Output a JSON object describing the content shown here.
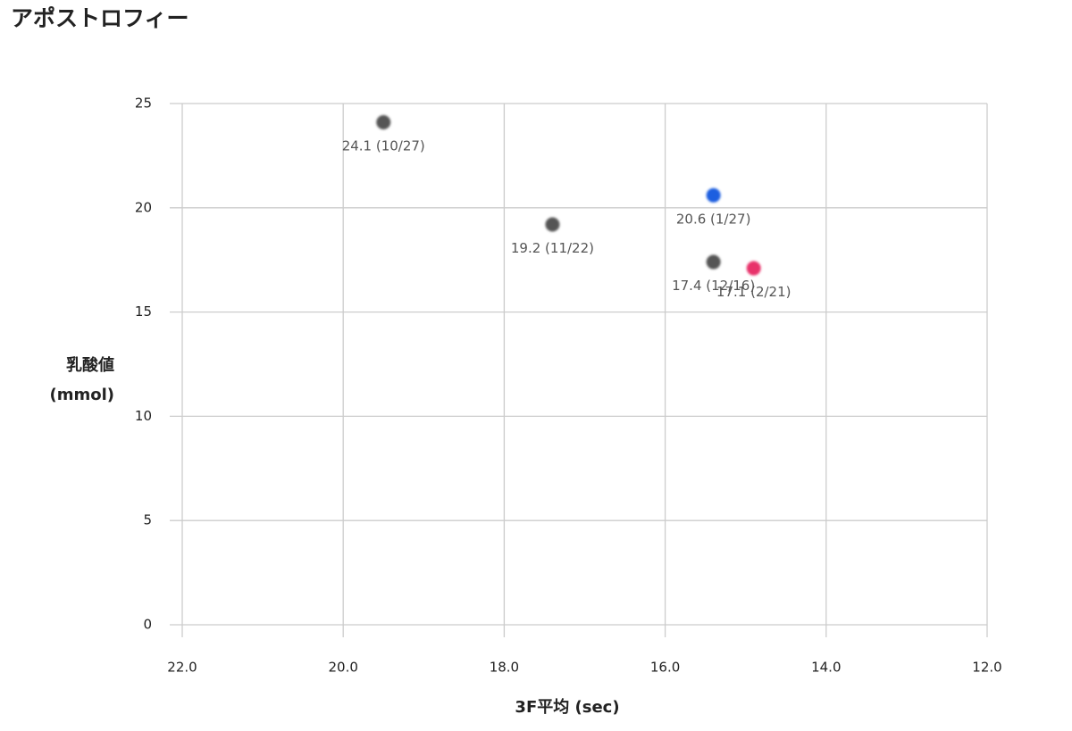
{
  "chart_data": {
    "type": "scatter",
    "title": "アポストロフィー",
    "xlabel": "3F平均 (sec)",
    "ylabel": [
      "乳酸値",
      "(mmol)"
    ],
    "x": [
      19.5,
      17.4,
      15.4,
      15.4,
      14.9
    ],
    "values": [
      24.1,
      19.2,
      20.6,
      17.4,
      17.1
    ],
    "value_labels": [
      "24.1 (10/27)",
      "19.2 (11/22)",
      "20.6 (1/27)",
      "17.4 (12/16)",
      "17.1 (2/21)"
    ],
    "colors": [
      "#555555",
      "#555555",
      "#1f5fe0",
      "#555555",
      "#e8336a"
    ],
    "xlim": [
      22,
      12
    ],
    "xticks": [
      {
        "value": 22,
        "label": "22.0"
      },
      {
        "value": 20,
        "label": "20.0"
      },
      {
        "value": 18,
        "label": "18.0"
      },
      {
        "value": 16,
        "label": "16.0"
      },
      {
        "value": 14,
        "label": "14.0"
      },
      {
        "value": 12,
        "label": "12.0"
      }
    ],
    "ylim": [
      0,
      25
    ],
    "yticks": [
      0,
      5,
      10,
      15,
      20,
      25
    ],
    "grid": true
  }
}
